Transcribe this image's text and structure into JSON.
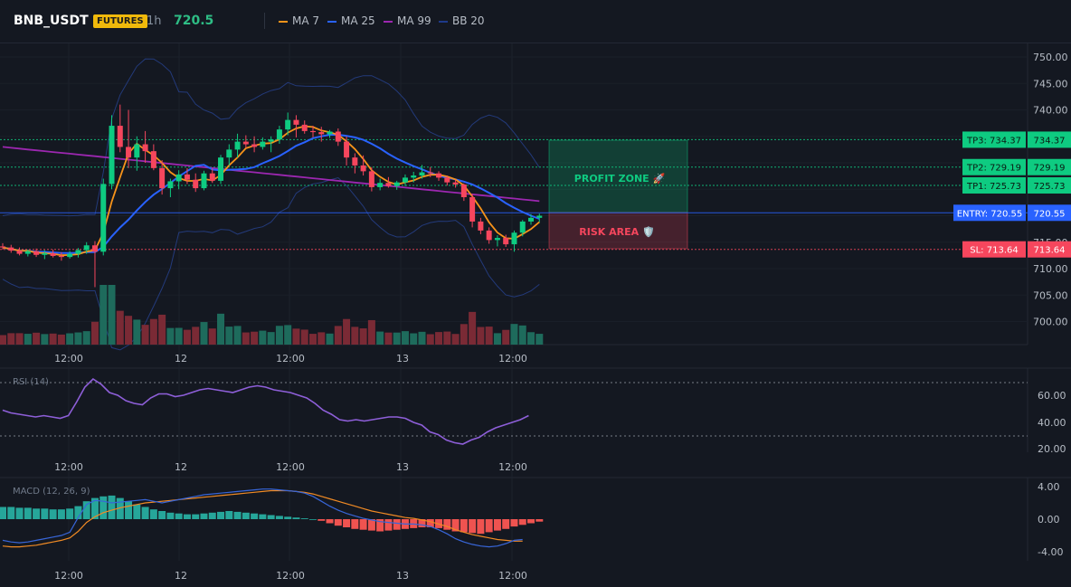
{
  "header": {
    "symbol": "BNB_USDT",
    "badge": "FUTURES",
    "timeframe": "1h",
    "price": "720.5",
    "legend": [
      {
        "label": "MA 7",
        "color": "#f7931a"
      },
      {
        "label": "MA 25",
        "color": "#2962ff"
      },
      {
        "label": "MA 99",
        "color": "#9c27b0"
      },
      {
        "label": "BB 20",
        "color": "#1e3a8a"
      }
    ]
  },
  "colors": {
    "up": "#0ecb81",
    "down": "#f6465d",
    "vol_up": "#1e6b5c",
    "vol_down": "#7a2a35",
    "rsi": "#8e5fd9",
    "macd": "#3866d9",
    "signal": "#f08a24",
    "hist_up": "#26a69a",
    "hist_down": "#ef5350"
  },
  "price_axis": [
    "750.00",
    "745.00",
    "740.00",
    "735.00",
    "730.00",
    "725.00",
    "720.00",
    "715.00",
    "710.00",
    "705.00",
    "700.00"
  ],
  "time_axis": [
    "12:00",
    "12",
    "12:00",
    "13",
    "12:00"
  ],
  "levels": [
    {
      "name": "tp3",
      "tag": "TP3: 734.37",
      "value": "734.37",
      "price": 734.37,
      "color": "#0ecb81"
    },
    {
      "name": "tp2",
      "tag": "TP2: 729.19",
      "value": "729.19",
      "price": 729.19,
      "color": "#0ecb81"
    },
    {
      "name": "tp1",
      "tag": "TP1: 725.73",
      "value": "725.73",
      "price": 725.73,
      "color": "#0ecb81"
    },
    {
      "name": "entry",
      "tag": "ENTRY: 720.55",
      "value": "720.55",
      "price": 720.55,
      "color": "#2962ff"
    },
    {
      "name": "sl",
      "tag": "SL: 713.64",
      "value": "713.64",
      "price": 713.64,
      "color": "#f6465d"
    }
  ],
  "zones": {
    "profit": "PROFIT ZONE 🚀",
    "risk": "RISK AREA 🛡️"
  },
  "rsi": {
    "label": "RSI (14)",
    "axis": [
      "60.00",
      "40.00",
      "20.00"
    ]
  },
  "macd": {
    "label": "MACD (12, 26, 9)",
    "axis": [
      "4.00",
      "0.00",
      "-4.00"
    ]
  },
  "chart_data": {
    "type": "candlestick",
    "ylim": [
      696,
      752
    ],
    "candles": [
      [
        714.2,
        714.8,
        713.6,
        714.0
      ],
      [
        714.0,
        714.5,
        713.0,
        713.4
      ],
      [
        713.4,
        714.0,
        712.5,
        712.8
      ],
      [
        712.8,
        713.6,
        712.3,
        713.3
      ],
      [
        713.3,
        713.8,
        712.2,
        712.6
      ],
      [
        712.6,
        713.5,
        711.8,
        712.9
      ],
      [
        712.9,
        713.6,
        712.1,
        712.4
      ],
      [
        712.4,
        713.1,
        711.5,
        712.2
      ],
      [
        712.2,
        713.3,
        711.9,
        712.8
      ],
      [
        712.8,
        713.9,
        712.1,
        713.5
      ],
      [
        713.5,
        715.0,
        712.8,
        714.4
      ],
      [
        714.4,
        715.2,
        706.5,
        713.2
      ],
      [
        713.2,
        727.0,
        712.5,
        726.0
      ],
      [
        726.0,
        739.0,
        725.0,
        737.0
      ],
      [
        737.0,
        741.0,
        732.0,
        733.0
      ],
      [
        733.0,
        740.0,
        729.0,
        731.0
      ],
      [
        731.0,
        735.0,
        728.5,
        733.5
      ],
      [
        733.5,
        736.0,
        730.0,
        732.2
      ],
      [
        732.2,
        733.5,
        728.6,
        729.0
      ],
      [
        729.0,
        730.5,
        724.0,
        725.2
      ],
      [
        725.2,
        727.0,
        723.5,
        726.5
      ],
      [
        726.5,
        728.6,
        725.0,
        727.8
      ],
      [
        727.8,
        729.0,
        726.0,
        726.8
      ],
      [
        726.8,
        728.0,
        724.5,
        725.2
      ],
      [
        725.2,
        728.5,
        724.8,
        728.0
      ],
      [
        728.0,
        729.0,
        726.2,
        726.6
      ],
      [
        726.6,
        731.5,
        726.0,
        731.0
      ],
      [
        731.0,
        733.5,
        729.5,
        732.5
      ],
      [
        732.5,
        735.5,
        731.0,
        734.0
      ],
      [
        734.0,
        735.2,
        732.8,
        733.5
      ],
      [
        733.5,
        735.0,
        732.0,
        733.0
      ],
      [
        733.0,
        734.8,
        732.5,
        734.0
      ],
      [
        734.0,
        735.0,
        732.0,
        734.4
      ],
      [
        734.4,
        737.0,
        733.6,
        736.3
      ],
      [
        736.3,
        739.5,
        735.2,
        738.1
      ],
      [
        738.1,
        739.0,
        734.8,
        737.2
      ],
      [
        737.2,
        738.0,
        735.5,
        736.0
      ],
      [
        736.0,
        737.0,
        734.8,
        735.8
      ],
      [
        735.8,
        736.8,
        734.0,
        735.4
      ],
      [
        735.4,
        736.2,
        734.7,
        735.9
      ],
      [
        735.9,
        736.5,
        733.2,
        734.0
      ],
      [
        734.0,
        735.0,
        729.5,
        731.0
      ],
      [
        731.0,
        731.8,
        728.0,
        729.5
      ],
      [
        729.5,
        731.4,
        727.6,
        728.4
      ],
      [
        728.4,
        729.2,
        724.6,
        725.4
      ],
      [
        725.4,
        727.0,
        724.8,
        726.2
      ],
      [
        726.2,
        727.3,
        725.3,
        725.6
      ],
      [
        725.6,
        726.6,
        724.9,
        726.3
      ],
      [
        726.3,
        727.8,
        725.6,
        727.2
      ],
      [
        727.2,
        728.3,
        726.3,
        727.6
      ],
      [
        727.6,
        729.6,
        727.0,
        728.2
      ],
      [
        728.2,
        729.2,
        727.3,
        728.0
      ],
      [
        728.0,
        728.4,
        726.6,
        727.2
      ],
      [
        727.2,
        727.6,
        725.7,
        726.3
      ],
      [
        726.3,
        726.8,
        725.3,
        725.9
      ],
      [
        725.9,
        726.1,
        722.8,
        723.5
      ],
      [
        723.5,
        724.1,
        717.8,
        718.9
      ],
      [
        718.9,
        719.6,
        716.5,
        717.2
      ],
      [
        717.2,
        717.8,
        714.7,
        715.4
      ],
      [
        715.4,
        716.3,
        714.2,
        715.8
      ],
      [
        715.8,
        716.4,
        714.1,
        714.6
      ],
      [
        714.6,
        717.2,
        713.2,
        716.8
      ],
      [
        716.8,
        719.2,
        716.1,
        718.9
      ],
      [
        718.9,
        720.3,
        718.3,
        719.6
      ],
      [
        719.6,
        720.4,
        718.8,
        720.0
      ]
    ]
  }
}
